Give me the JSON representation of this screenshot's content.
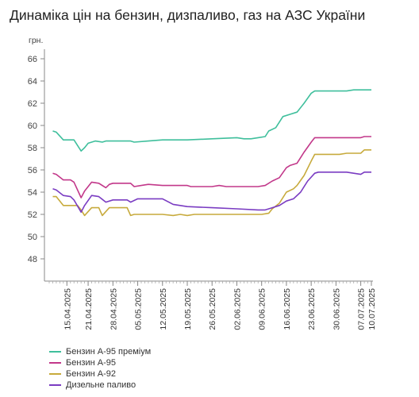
{
  "title": "Динаміка цін на бензин, дизпаливо, газ на АЗС України",
  "chart_data": {
    "type": "line",
    "title": "Динаміка цін на бензин, дизпаливо, газ на АЗС України",
    "y_unit_label": "грн.",
    "ylim": [
      46,
      66
    ],
    "y_ticks": [
      48,
      50,
      52,
      54,
      56,
      58,
      60,
      62,
      64,
      66
    ],
    "grid": false,
    "legend_placement": "bottom-left",
    "x_tick_labels": [
      "15.04.2025",
      "21.04.2025",
      "28.04.2025",
      "05.05.2025",
      "12.05.2025",
      "19.05.2025",
      "26.05.2025",
      "02.06.2025",
      "09.06.2025",
      "16.06.2025",
      "23.06.2025",
      "30.06.2025",
      "07.07.2025",
      "10.07.2025"
    ],
    "x_tick_dates": [
      "2025-04-15",
      "2025-04-21",
      "2025-04-28",
      "2025-05-05",
      "2025-05-12",
      "2025-05-19",
      "2025-05-26",
      "2025-06-02",
      "2025-06-09",
      "2025-06-16",
      "2025-06-23",
      "2025-06-30",
      "2025-07-07",
      "2025-07-10"
    ],
    "series": [
      {
        "name": "Бензин А-95 преміум",
        "color": "#3fbf9c",
        "points": [
          [
            "2025-04-11",
            59.5
          ],
          [
            "2025-04-12",
            59.4
          ],
          [
            "2025-04-14",
            58.7
          ],
          [
            "2025-04-17",
            58.7
          ],
          [
            "2025-04-19",
            57.7
          ],
          [
            "2025-04-20",
            58.0
          ],
          [
            "2025-04-21",
            58.4
          ],
          [
            "2025-04-23",
            58.6
          ],
          [
            "2025-04-25",
            58.5
          ],
          [
            "2025-04-26",
            58.6
          ],
          [
            "2025-05-03",
            58.6
          ],
          [
            "2025-05-04",
            58.5
          ],
          [
            "2025-05-08",
            58.6
          ],
          [
            "2025-05-12",
            58.7
          ],
          [
            "2025-05-19",
            58.7
          ],
          [
            "2025-05-26",
            58.8
          ],
          [
            "2025-06-02",
            58.9
          ],
          [
            "2025-06-04",
            58.8
          ],
          [
            "2025-06-06",
            58.8
          ],
          [
            "2025-06-08",
            58.9
          ],
          [
            "2025-06-10",
            59.0
          ],
          [
            "2025-06-11",
            59.5
          ],
          [
            "2025-06-13",
            59.8
          ],
          [
            "2025-06-15",
            60.8
          ],
          [
            "2025-06-17",
            61.0
          ],
          [
            "2025-06-19",
            61.2
          ],
          [
            "2025-06-21",
            62.0
          ],
          [
            "2025-06-23",
            62.9
          ],
          [
            "2025-06-24",
            63.1
          ],
          [
            "2025-06-26",
            63.1
          ],
          [
            "2025-07-03",
            63.1
          ],
          [
            "2025-07-05",
            63.2
          ],
          [
            "2025-07-10",
            63.2
          ]
        ]
      },
      {
        "name": "Бензин А-95",
        "color": "#c2388a",
        "points": [
          [
            "2025-04-11",
            55.7
          ],
          [
            "2025-04-12",
            55.6
          ],
          [
            "2025-04-14",
            55.1
          ],
          [
            "2025-04-16",
            55.1
          ],
          [
            "2025-04-17",
            54.9
          ],
          [
            "2025-04-19",
            53.5
          ],
          [
            "2025-04-20",
            54.1
          ],
          [
            "2025-04-22",
            54.9
          ],
          [
            "2025-04-24",
            54.8
          ],
          [
            "2025-04-26",
            54.4
          ],
          [
            "2025-04-27",
            54.7
          ],
          [
            "2025-04-28",
            54.8
          ],
          [
            "2025-05-03",
            54.8
          ],
          [
            "2025-05-04",
            54.5
          ],
          [
            "2025-05-06",
            54.6
          ],
          [
            "2025-05-08",
            54.7
          ],
          [
            "2025-05-12",
            54.6
          ],
          [
            "2025-05-19",
            54.6
          ],
          [
            "2025-05-20",
            54.5
          ],
          [
            "2025-05-26",
            54.5
          ],
          [
            "2025-05-28",
            54.6
          ],
          [
            "2025-05-30",
            54.5
          ],
          [
            "2025-06-02",
            54.5
          ],
          [
            "2025-06-08",
            54.5
          ],
          [
            "2025-06-10",
            54.6
          ],
          [
            "2025-06-12",
            55.0
          ],
          [
            "2025-06-14",
            55.3
          ],
          [
            "2025-06-16",
            56.2
          ],
          [
            "2025-06-17",
            56.4
          ],
          [
            "2025-06-19",
            56.6
          ],
          [
            "2025-06-21",
            57.6
          ],
          [
            "2025-06-23",
            58.5
          ],
          [
            "2025-06-24",
            58.9
          ],
          [
            "2025-06-27",
            58.9
          ],
          [
            "2025-07-07",
            58.9
          ],
          [
            "2025-07-08",
            59.0
          ],
          [
            "2025-07-10",
            59.0
          ]
        ]
      },
      {
        "name": "Бензин А-92",
        "color": "#c7aa3c",
        "points": [
          [
            "2025-04-11",
            53.6
          ],
          [
            "2025-04-12",
            53.6
          ],
          [
            "2025-04-14",
            52.8
          ],
          [
            "2025-04-18",
            52.8
          ],
          [
            "2025-04-19",
            52.4
          ],
          [
            "2025-04-20",
            51.9
          ],
          [
            "2025-04-22",
            52.6
          ],
          [
            "2025-04-24",
            52.6
          ],
          [
            "2025-04-25",
            51.9
          ],
          [
            "2025-04-27",
            52.6
          ],
          [
            "2025-05-02",
            52.6
          ],
          [
            "2025-05-03",
            51.9
          ],
          [
            "2025-05-04",
            52.0
          ],
          [
            "2025-05-12",
            52.0
          ],
          [
            "2025-05-15",
            51.9
          ],
          [
            "2025-05-17",
            52.0
          ],
          [
            "2025-05-19",
            51.9
          ],
          [
            "2025-05-21",
            52.0
          ],
          [
            "2025-06-02",
            52.0
          ],
          [
            "2025-06-09",
            52.0
          ],
          [
            "2025-06-11",
            52.1
          ],
          [
            "2025-06-12",
            52.5
          ],
          [
            "2025-06-14",
            53.0
          ],
          [
            "2025-06-16",
            54.0
          ],
          [
            "2025-06-18",
            54.3
          ],
          [
            "2025-06-19",
            54.6
          ],
          [
            "2025-06-21",
            55.5
          ],
          [
            "2025-06-23",
            56.8
          ],
          [
            "2025-06-24",
            57.4
          ],
          [
            "2025-06-26",
            57.4
          ],
          [
            "2025-07-01",
            57.4
          ],
          [
            "2025-07-03",
            57.5
          ],
          [
            "2025-07-07",
            57.5
          ],
          [
            "2025-07-08",
            57.8
          ],
          [
            "2025-07-10",
            57.8
          ]
        ]
      },
      {
        "name": "Дизельне паливо",
        "color": "#7a3cc2",
        "points": [
          [
            "2025-04-11",
            54.3
          ],
          [
            "2025-04-12",
            54.2
          ],
          [
            "2025-04-14",
            53.7
          ],
          [
            "2025-04-16",
            53.6
          ],
          [
            "2025-04-17",
            53.3
          ],
          [
            "2025-04-19",
            52.2
          ],
          [
            "2025-04-20",
            52.8
          ],
          [
            "2025-04-22",
            53.7
          ],
          [
            "2025-04-24",
            53.6
          ],
          [
            "2025-04-26",
            53.1
          ],
          [
            "2025-04-28",
            53.3
          ],
          [
            "2025-05-02",
            53.3
          ],
          [
            "2025-05-03",
            53.1
          ],
          [
            "2025-05-05",
            53.4
          ],
          [
            "2025-05-12",
            53.4
          ],
          [
            "2025-05-15",
            52.9
          ],
          [
            "2025-05-17",
            52.8
          ],
          [
            "2025-05-19",
            52.7
          ],
          [
            "2025-05-26",
            52.6
          ],
          [
            "2025-06-02",
            52.5
          ],
          [
            "2025-06-08",
            52.4
          ],
          [
            "2025-06-10",
            52.4
          ],
          [
            "2025-06-12",
            52.6
          ],
          [
            "2025-06-14",
            52.8
          ],
          [
            "2025-06-16",
            53.2
          ],
          [
            "2025-06-18",
            53.4
          ],
          [
            "2025-06-20",
            54.0
          ],
          [
            "2025-06-22",
            55.0
          ],
          [
            "2025-06-24",
            55.7
          ],
          [
            "2025-06-25",
            55.8
          ],
          [
            "2025-06-30",
            55.8
          ],
          [
            "2025-07-03",
            55.8
          ],
          [
            "2025-07-05",
            55.7
          ],
          [
            "2025-07-07",
            55.6
          ],
          [
            "2025-07-08",
            55.8
          ],
          [
            "2025-07-10",
            55.8
          ]
        ]
      }
    ]
  }
}
